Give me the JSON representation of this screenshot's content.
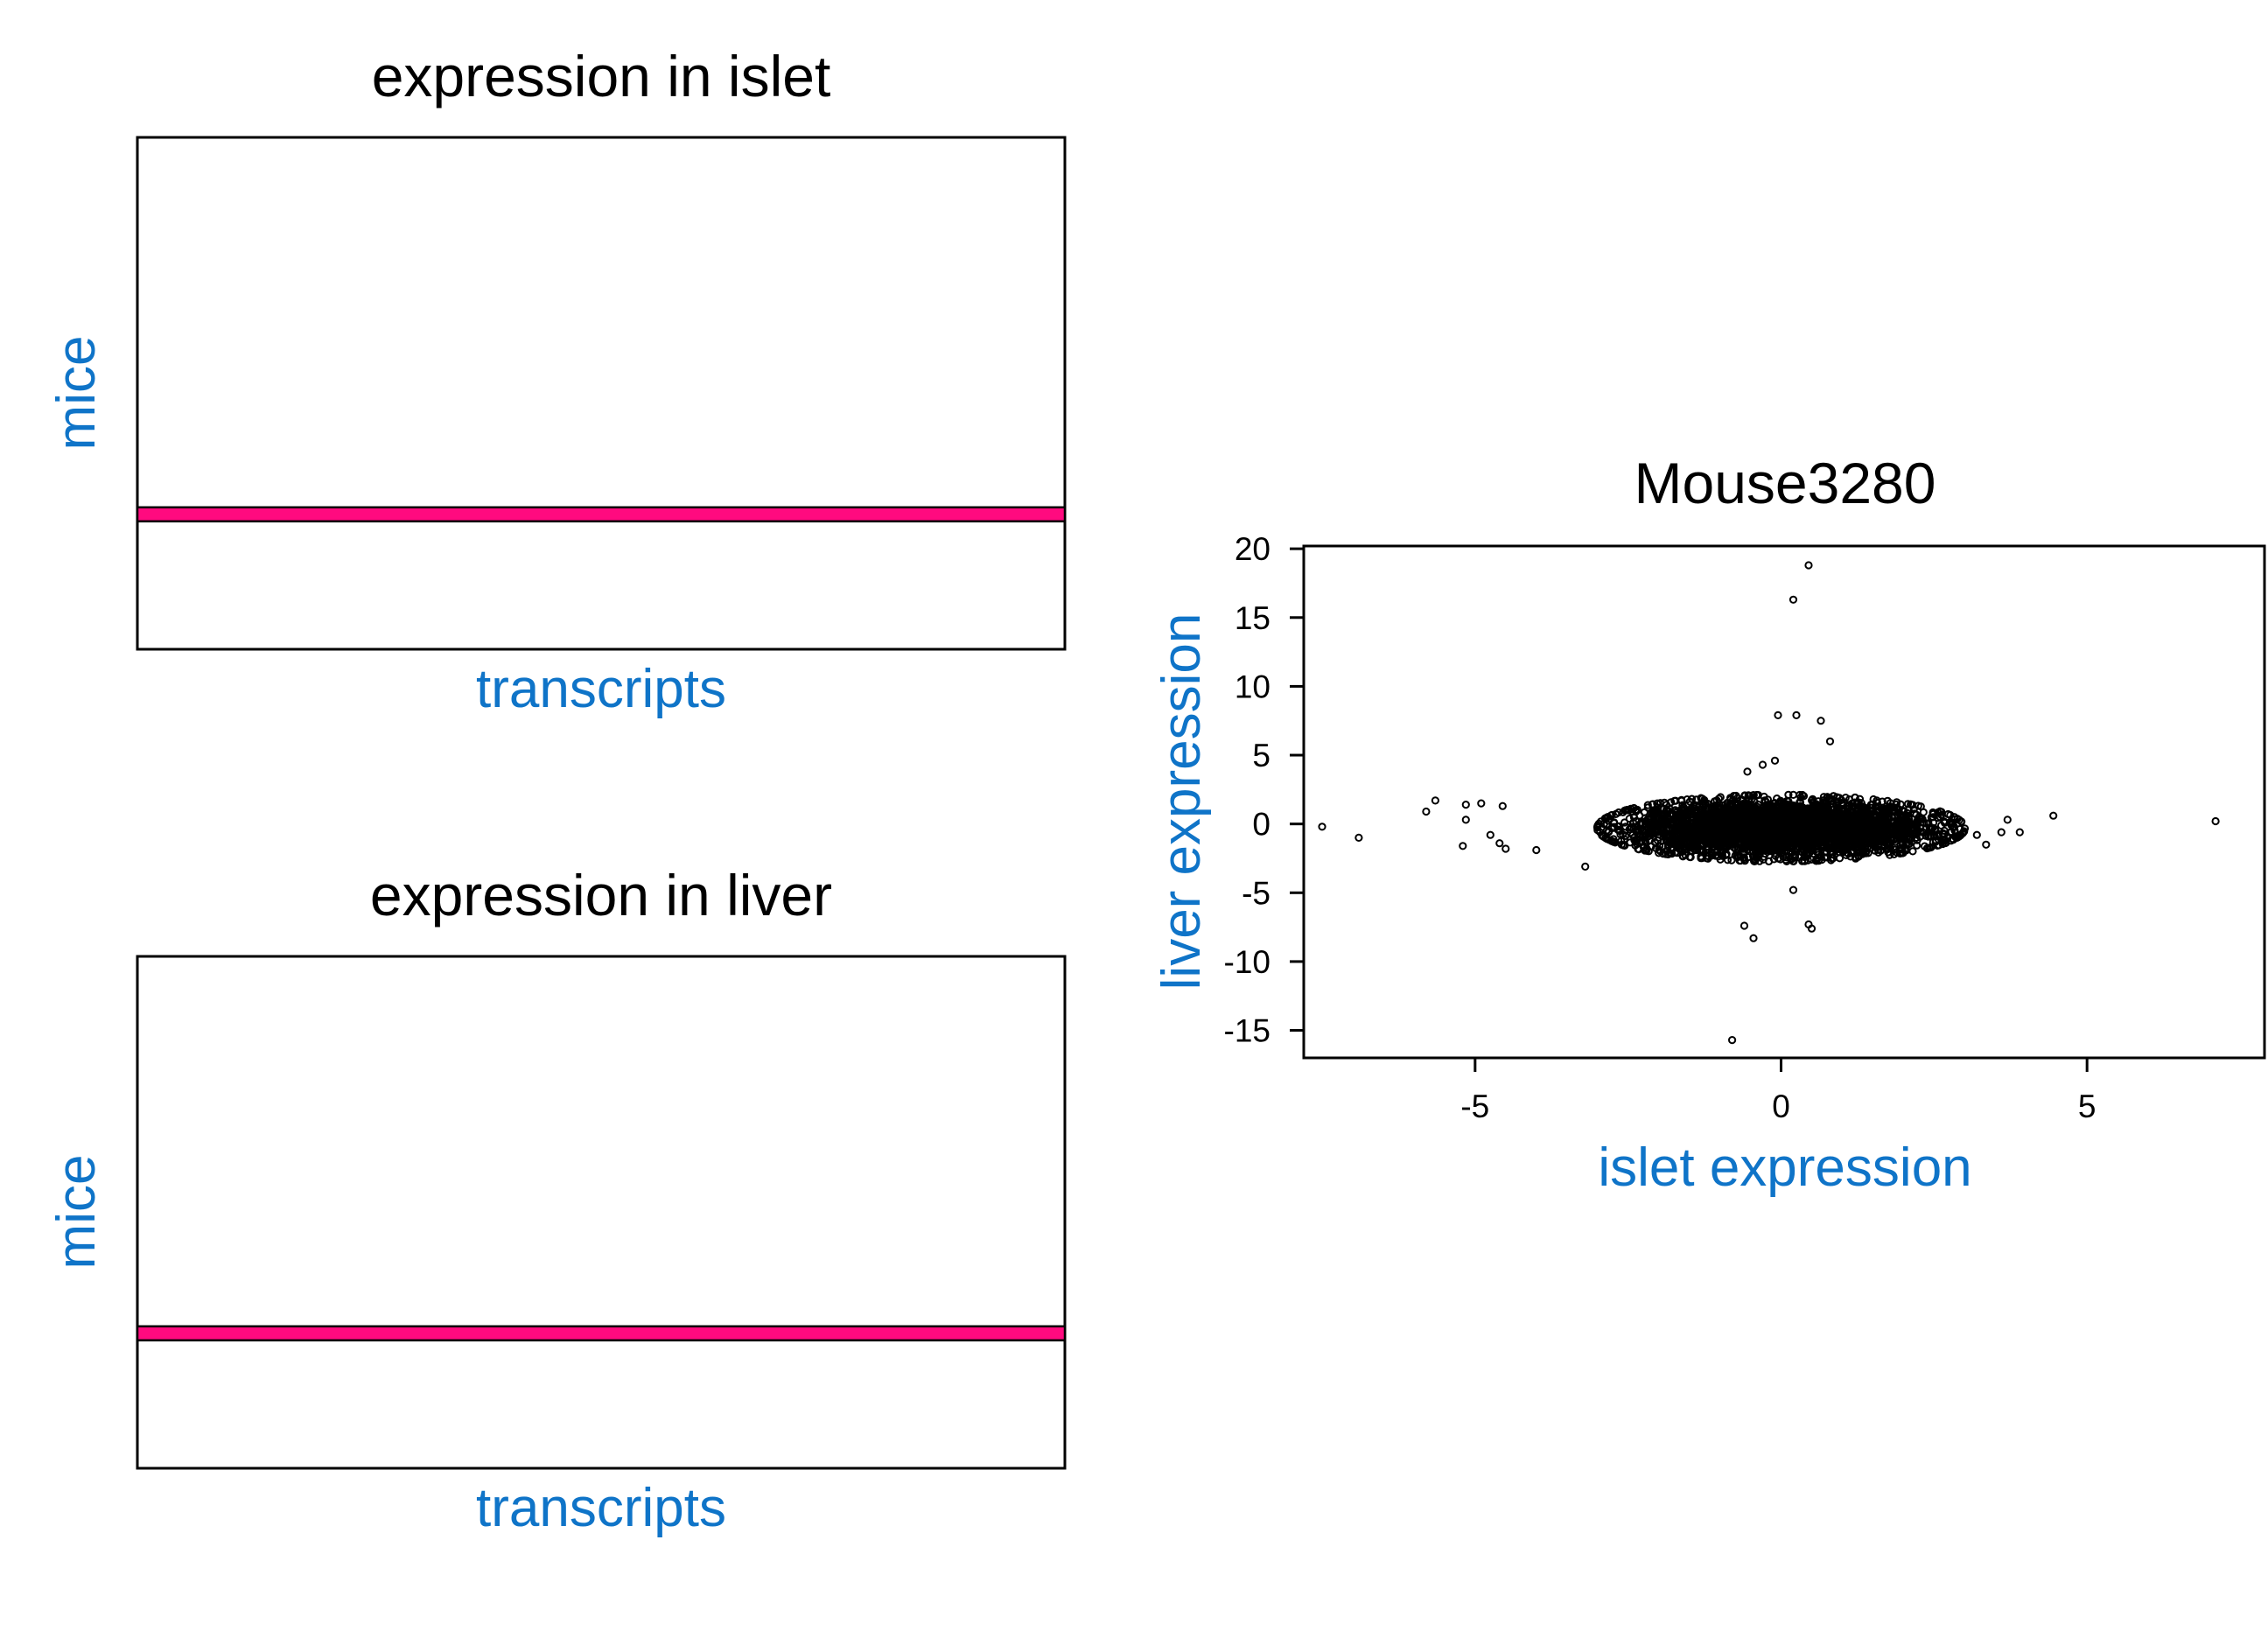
{
  "colors": {
    "axis_label": "#0f74c8",
    "highlight": "#ff0a7f",
    "ink": "#000000"
  },
  "panels": [
    {
      "title": "expression in islet",
      "xlabel": "transcripts",
      "ylabel": "mice"
    },
    {
      "title": "expression in liver",
      "xlabel": "transcripts",
      "ylabel": "mice"
    }
  ],
  "chart_data": [
    {
      "type": "heatmap",
      "title": "expression in islet",
      "xlabel": "transcripts",
      "ylabel": "mice",
      "highlighted_row_fraction_from_bottom": 0.25
    },
    {
      "type": "heatmap",
      "title": "expression in liver",
      "xlabel": "transcripts",
      "ylabel": "mice",
      "highlighted_row_fraction_from_bottom": 0.25
    },
    {
      "type": "scatter",
      "title": "Mouse3280",
      "xlabel": "islet expression",
      "ylabel": "liver expression",
      "xlim": [
        -7.8,
        7.9
      ],
      "ylim": [
        -17,
        20.2
      ],
      "xticks": [
        -5,
        0,
        5
      ],
      "xtick_labels": [
        "-5",
        "0",
        "5"
      ],
      "yticks": [
        20,
        15,
        10,
        5,
        0,
        -5,
        -10,
        -15
      ],
      "ytick_labels": [
        "20",
        "15",
        "10",
        "5",
        "0",
        "-5",
        "-10",
        "-15"
      ],
      "dense_cloud": {
        "x_center": 0,
        "y_center": -0.3,
        "x_spread": 1.9,
        "y_spread": 1.0,
        "n": 4000
      },
      "outliers": [
        [
          0.45,
          18.8
        ],
        [
          0.2,
          16.3
        ],
        [
          -0.05,
          7.9
        ],
        [
          0.25,
          7.9
        ],
        [
          0.65,
          7.5
        ],
        [
          0.8,
          6.0
        ],
        [
          -0.1,
          4.6
        ],
        [
          -0.3,
          4.3
        ],
        [
          -0.55,
          3.8
        ],
        [
          -5.65,
          1.7
        ],
        [
          -5.8,
          0.9
        ],
        [
          -5.15,
          1.4
        ],
        [
          -4.9,
          1.5
        ],
        [
          -4.55,
          1.3
        ],
        [
          -5.15,
          0.3
        ],
        [
          -4.75,
          -0.8
        ],
        [
          -7.5,
          -0.2
        ],
        [
          -6.9,
          -1.0
        ],
        [
          -5.2,
          -1.6
        ],
        [
          -4.6,
          -1.4
        ],
        [
          -4.5,
          -1.8
        ],
        [
          -4.0,
          -1.9
        ],
        [
          -3.2,
          -3.1
        ],
        [
          3.2,
          -0.8
        ],
        [
          3.6,
          -0.6
        ],
        [
          3.9,
          -0.6
        ],
        [
          3.7,
          0.3
        ],
        [
          3.35,
          -1.5
        ],
        [
          4.45,
          0.6
        ],
        [
          7.1,
          0.2
        ],
        [
          0.2,
          -4.8
        ],
        [
          -0.6,
          -7.4
        ],
        [
          -0.45,
          -8.3
        ],
        [
          0.45,
          -7.3
        ],
        [
          0.5,
          -7.6
        ],
        [
          -0.8,
          -15.7
        ]
      ]
    }
  ]
}
